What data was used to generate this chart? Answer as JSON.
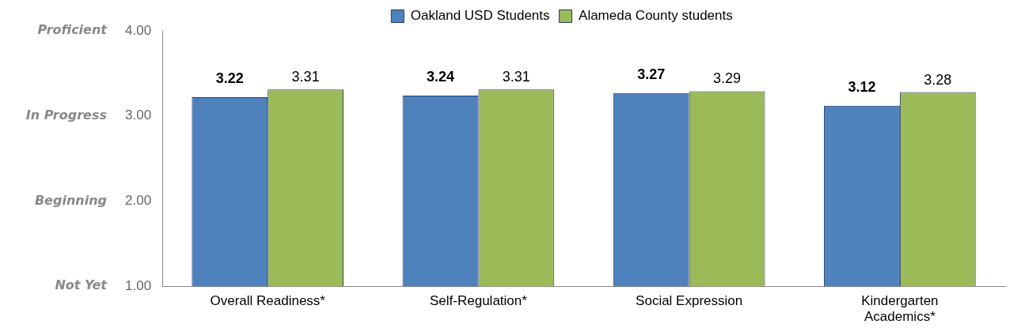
{
  "chart_data": {
    "type": "bar",
    "categories": [
      "Overall Readiness*",
      "Self-Regulation*",
      "Social Expression",
      "Kindergarten Academics*"
    ],
    "series": [
      {
        "name": "Oakland USD Students",
        "color": "#4f81bd",
        "values": [
          3.22,
          3.24,
          3.27,
          3.12
        ]
      },
      {
        "name": "Alameda County students",
        "color": "#9bbb59",
        "values": [
          3.31,
          3.31,
          3.29,
          3.28
        ]
      }
    ],
    "ylim": [
      1,
      4
    ],
    "yticks": [
      {
        "value": 1,
        "label": "1.00"
      },
      {
        "value": 2,
        "label": "2.00"
      },
      {
        "value": 3,
        "label": "3.00"
      },
      {
        "value": 4,
        "label": "4.00"
      }
    ],
    "annotations": [
      "Not Yet",
      "Beginning",
      "In Progress",
      "Proficient"
    ],
    "data_labels": true,
    "legend": "top",
    "grid": false
  }
}
